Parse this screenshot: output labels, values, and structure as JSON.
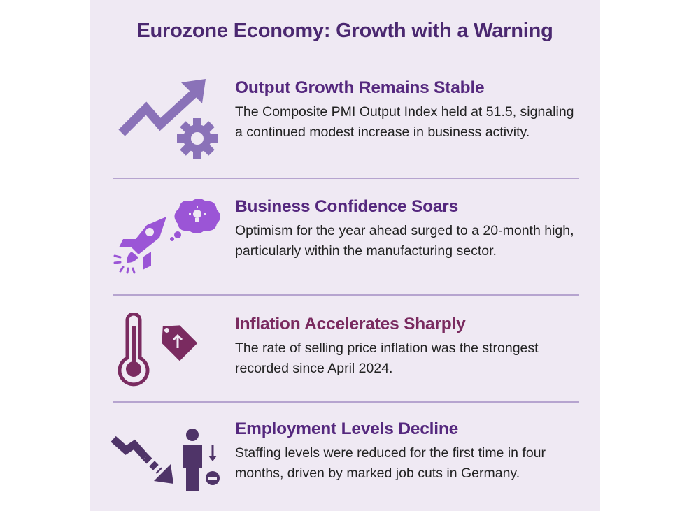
{
  "title": "Eurozone Economy: Growth with a Warning",
  "colors": {
    "background": "#efe9f3",
    "title": "#4b2870",
    "heading_purple": "#55287e",
    "heading_maroon": "#7a2b60",
    "icon_lavender": "#8a72b8",
    "icon_violet": "#9b55d6",
    "icon_maroon": "#7a2b60",
    "icon_dark": "#4f3468"
  },
  "sections": [
    {
      "heading": "Output Growth Remains Stable",
      "body": "The Composite PMI Output Index held at 51.5, signaling a continued modest increase in business activity.",
      "icons": [
        "trending-up-arrow-icon",
        "gear-icon"
      ]
    },
    {
      "heading": "Business Confidence Soars",
      "body": "Optimism for the year ahead surged to a 20-month high, particularly within the manufacturing sector.",
      "icons": [
        "rocket-icon",
        "thought-bubble-lightbulb-icon"
      ]
    },
    {
      "heading": "Inflation Accelerates Sharply",
      "body": "The rate of selling price inflation was the strongest recorded since April 2024.",
      "icons": [
        "thermometer-icon",
        "price-tag-up-icon"
      ]
    },
    {
      "heading": "Employment Levels Decline",
      "body": "Staffing levels were reduced for the first time in four months, driven by marked job cuts in Germany.",
      "icons": [
        "trending-down-arrow-icon",
        "person-minus-icon"
      ]
    }
  ]
}
